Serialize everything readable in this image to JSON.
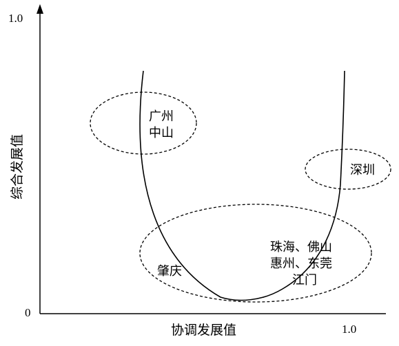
{
  "axes": {
    "y_title": "综合发展值",
    "x_title": "协调发展值",
    "y_max_label": "1.0",
    "origin_label": "0",
    "x_max_label": "1.0"
  },
  "groups": [
    {
      "lines": [
        "广州",
        "中山"
      ]
    },
    {
      "lines": [
        "深圳"
      ]
    },
    {
      "lines": [
        "肇庆"
      ]
    },
    {
      "lines": [
        "珠海、佛山",
        "惠州、东莞",
        "江门"
      ]
    }
  ]
}
